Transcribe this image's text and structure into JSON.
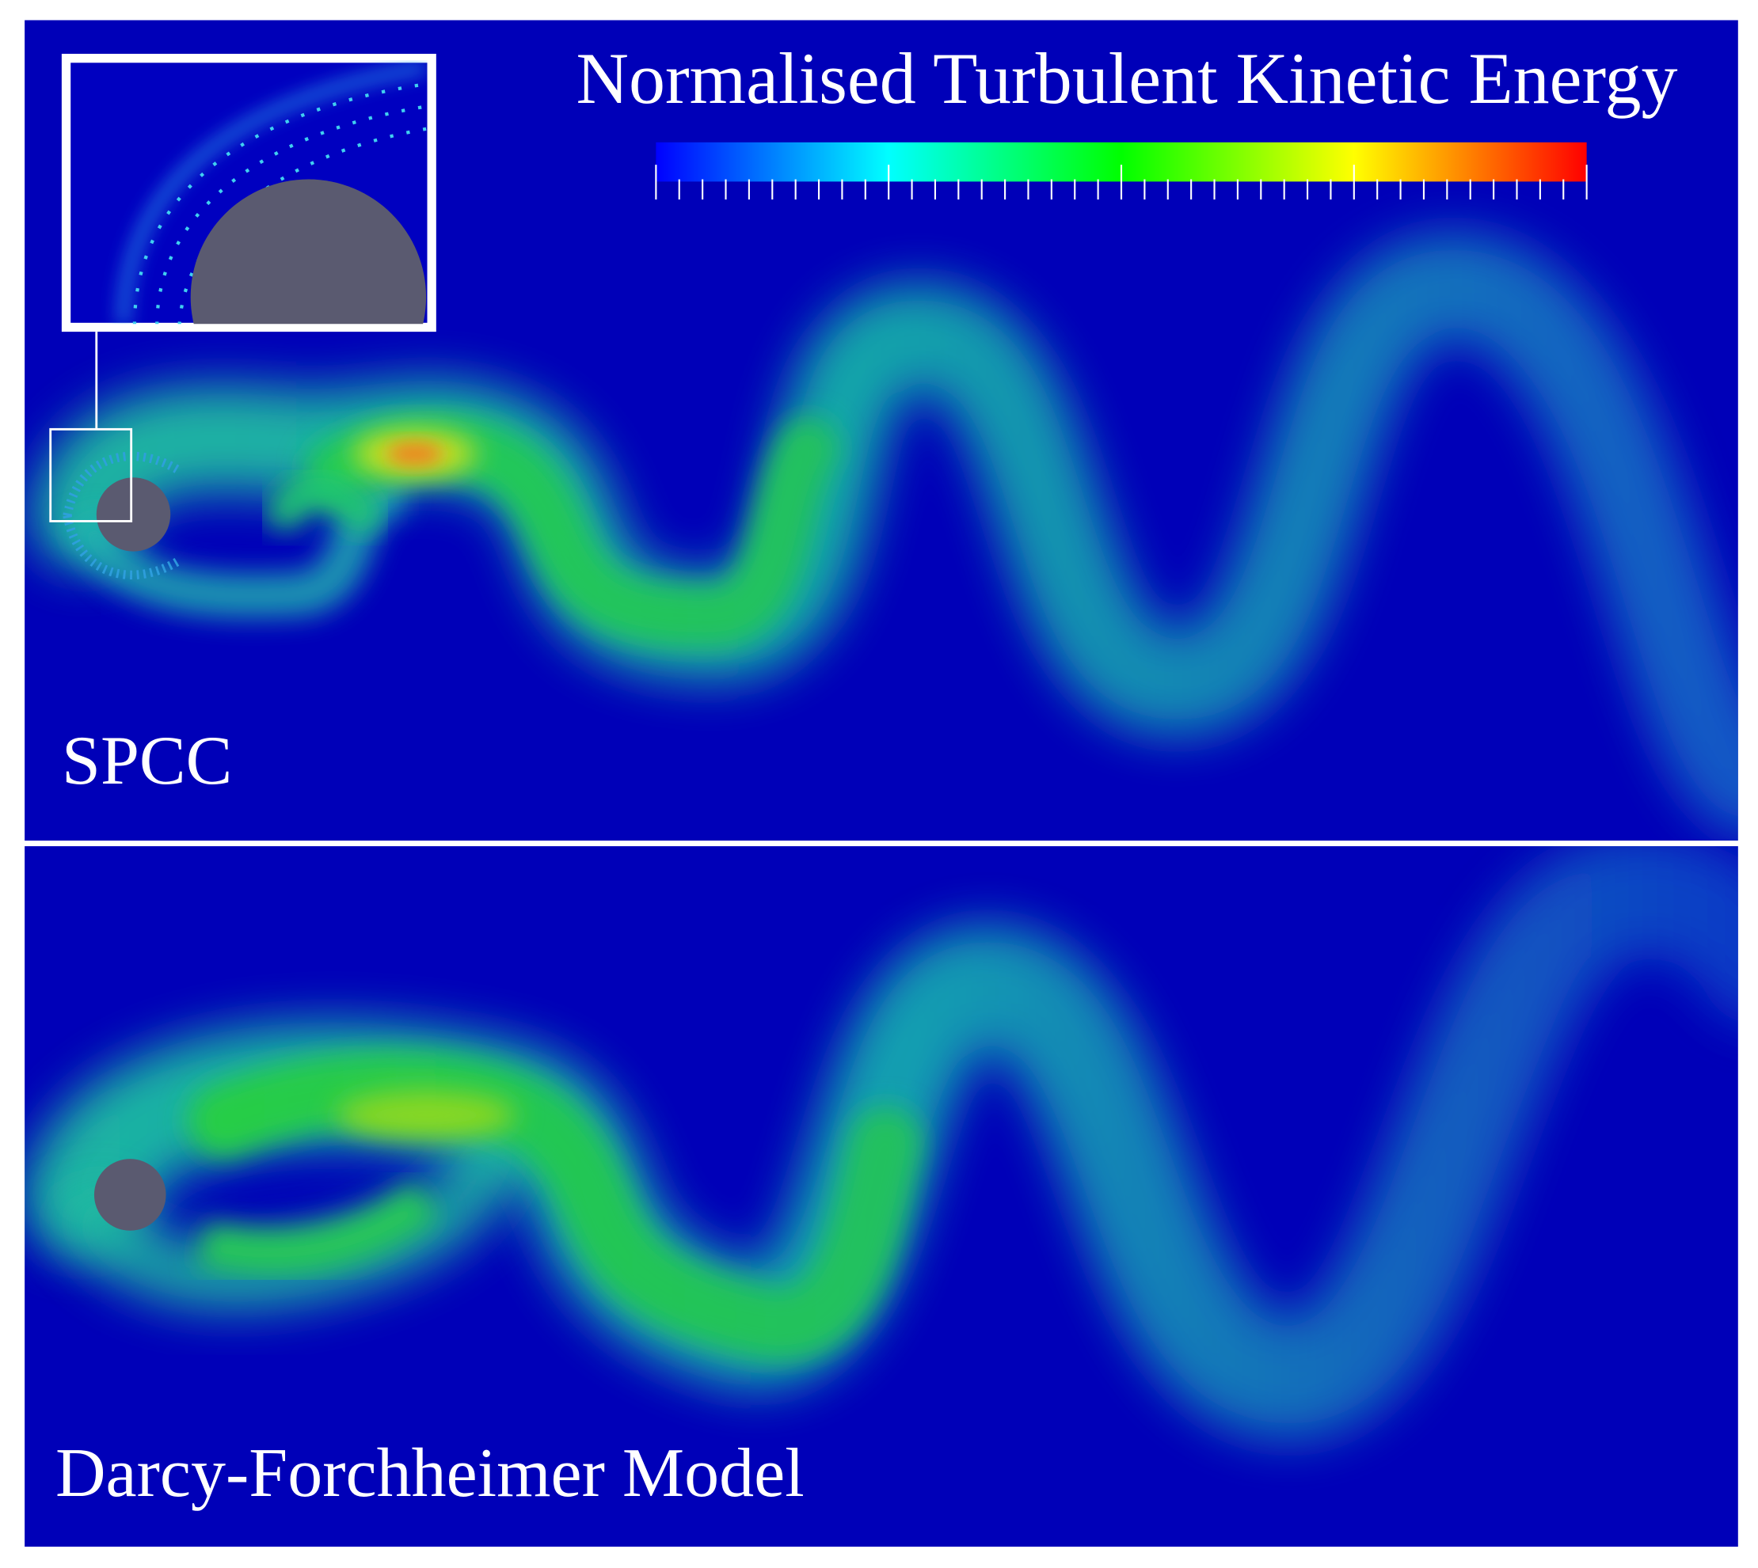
{
  "title": "Normalised Turbulent Kinetic Energy",
  "panels": [
    {
      "label": "SPCC"
    },
    {
      "label": "Darcy-Forchheimer Model"
    }
  ]
}
